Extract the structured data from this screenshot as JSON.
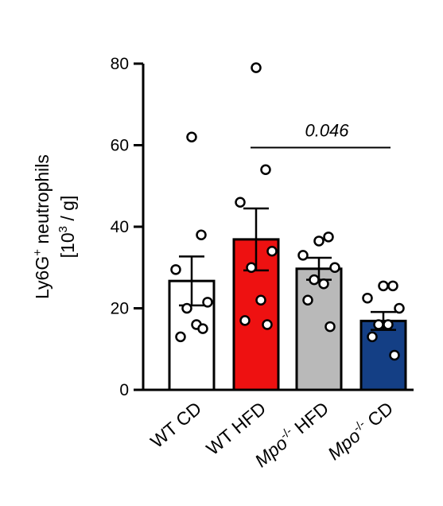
{
  "chart_data": {
    "type": "bar",
    "ylabel_line1_main": "Ly6G",
    "ylabel_line1_sup": "+",
    "ylabel_line1_rest": " neutrophils",
    "ylabel_line2_pre": "[10",
    "ylabel_line2_sup": "3",
    "ylabel_line2_post": " / g]",
    "ylim": [
      0,
      80
    ],
    "yticks": [
      0,
      20,
      40,
      60,
      80
    ],
    "grid": false,
    "categories": [
      {
        "prefix": "WT",
        "italic": false,
        "sup": "",
        "suffix": " CD",
        "label": "WT CD"
      },
      {
        "prefix": "WT",
        "italic": false,
        "sup": "",
        "suffix": " HFD",
        "label": "WT HFD"
      },
      {
        "prefix": "Mpo",
        "italic": true,
        "sup": "-/-",
        "suffix": " HFD",
        "label": "Mpo-/- HFD"
      },
      {
        "prefix": "Mpo",
        "italic": true,
        "sup": "-/-",
        "suffix": " CD",
        "label": "Mpo-/- CD"
      }
    ],
    "series": [
      {
        "values": [
          26.7,
          36.9,
          29.7,
          16.9
        ],
        "errors": [
          6.0,
          7.6,
          2.7,
          2.2
        ],
        "colors": [
          "#ffffff",
          "#ee1111",
          "#b9b9b9",
          "#143f85"
        ],
        "points": [
          [
            62,
            38,
            29.5,
            21.5,
            20,
            16,
            13,
            15
          ],
          [
            79,
            54,
            46,
            34,
            30,
            22,
            17,
            16
          ],
          [
            36.5,
            37.5,
            33,
            30,
            27,
            26,
            22,
            15.5
          ],
          [
            25.5,
            25.5,
            22.5,
            20,
            16,
            16,
            13,
            8.5
          ]
        ]
      }
    ],
    "annotations": [
      {
        "text": "0.046",
        "from_category": 1,
        "to_category": 3,
        "y": 60
      }
    ]
  }
}
